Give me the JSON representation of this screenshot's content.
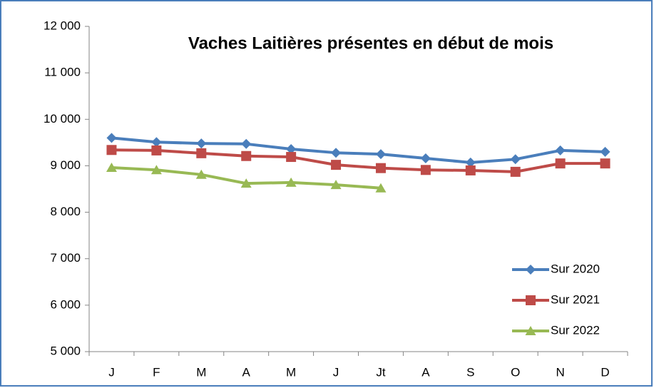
{
  "chart_data": {
    "type": "line",
    "title": "Vaches Laitières présentes en début de mois",
    "categories": [
      "J",
      "F",
      "M",
      "A",
      "M",
      "J",
      "Jt",
      "A",
      "S",
      "O",
      "N",
      "D"
    ],
    "series": [
      {
        "name": "Sur 2020",
        "color": "#4a7ebb",
        "marker": "diamond",
        "values": [
          9600,
          9510,
          9480,
          9470,
          9360,
          9280,
          9250,
          9160,
          9070,
          9140,
          9330,
          9300
        ]
      },
      {
        "name": "Sur 2021",
        "color": "#be4b48",
        "marker": "square",
        "values": [
          9340,
          9330,
          9270,
          9210,
          9190,
          9020,
          8950,
          8910,
          8900,
          8870,
          9050,
          9050
        ]
      },
      {
        "name": "Sur 2022",
        "color": "#98b954",
        "marker": "triangle",
        "values": [
          8960,
          8910,
          8810,
          8620,
          8640,
          8590,
          8520,
          null,
          null,
          null,
          null,
          null
        ]
      }
    ],
    "ylim": [
      5000,
      12000
    ],
    "yticks": [
      {
        "value": 5000,
        "label": "5 000"
      },
      {
        "value": 6000,
        "label": "6 000"
      },
      {
        "value": 7000,
        "label": "7 000"
      },
      {
        "value": 8000,
        "label": "8 000"
      },
      {
        "value": 9000,
        "label": "9 000"
      },
      {
        "value": 10000,
        "label": "10 000"
      },
      {
        "value": 11000,
        "label": "11 000"
      },
      {
        "value": 12000,
        "label": "12 000"
      }
    ],
    "grid": false,
    "legend": "lower right"
  }
}
